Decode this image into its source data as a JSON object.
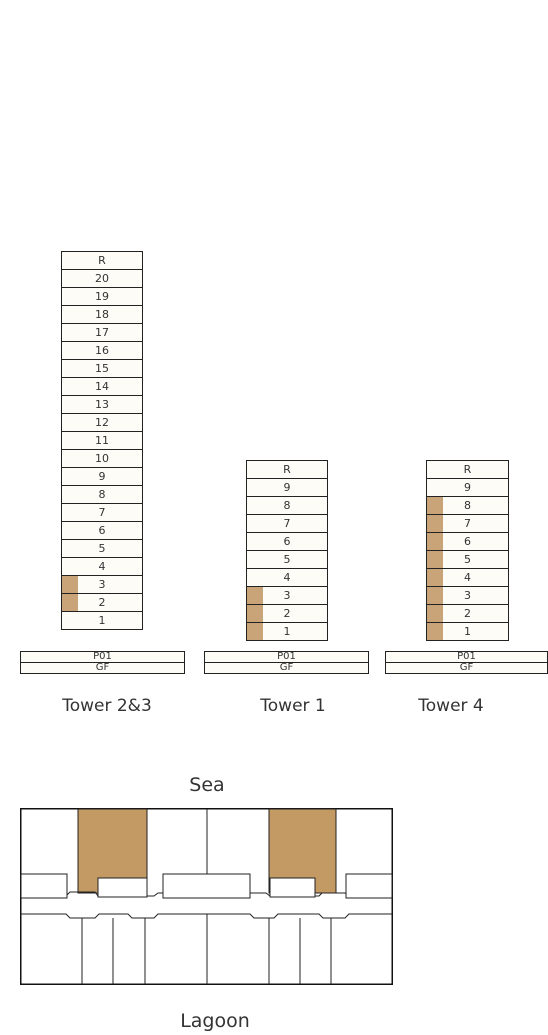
{
  "towers": [
    {
      "label": "Tower 2&3",
      "floors": [
        "R",
        "20",
        "19",
        "18",
        "17",
        "16",
        "15",
        "14",
        "13",
        "12",
        "11",
        "10",
        "9",
        "8",
        "7",
        "6",
        "5",
        "4",
        "3",
        "2",
        "1"
      ],
      "highlighted": [
        "3",
        "2"
      ],
      "podium": [
        "P01",
        "GF"
      ]
    },
    {
      "label": "Tower 1",
      "floors": [
        "R",
        "9",
        "8",
        "7",
        "6",
        "5",
        "4",
        "3",
        "2",
        "1"
      ],
      "highlighted": [
        "3",
        "2",
        "1"
      ],
      "podium": [
        "P01",
        "GF"
      ]
    },
    {
      "label": "Tower 4",
      "floors": [
        "R",
        "9",
        "8",
        "7",
        "6",
        "5",
        "4",
        "3",
        "2",
        "1"
      ],
      "highlighted": [
        "8",
        "7",
        "6",
        "5",
        "4",
        "3",
        "2",
        "1"
      ],
      "podium": [
        "P01",
        "GF"
      ]
    }
  ],
  "plan": {
    "top_label": "Sea",
    "bottom_label": "Lagoon",
    "highlight_color": "#c49a64",
    "highlighted_units": 2
  },
  "colors": {
    "highlight": "#c9a479",
    "floor_fill": "#fdfcf7",
    "stroke": "#222222"
  }
}
